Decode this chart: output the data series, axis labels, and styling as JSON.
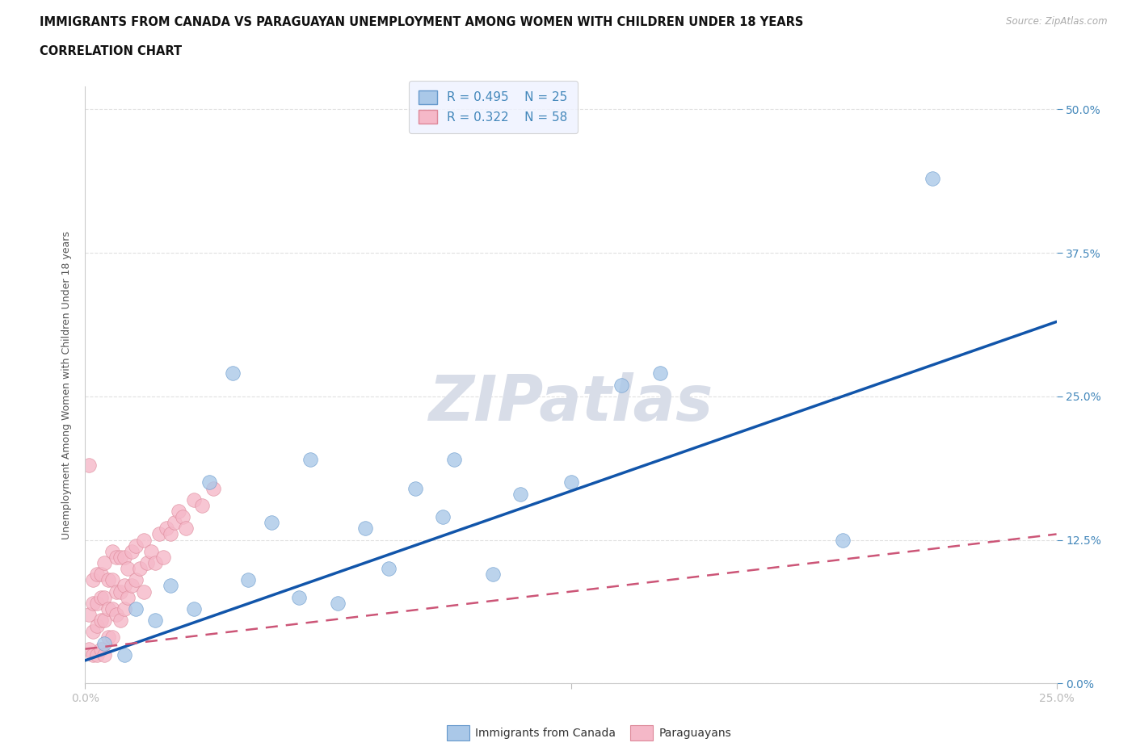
{
  "title_line1": "IMMIGRANTS FROM CANADA VS PARAGUAYAN UNEMPLOYMENT AMONG WOMEN WITH CHILDREN UNDER 18 YEARS",
  "title_line2": "CORRELATION CHART",
  "source_text": "Source: ZipAtlas.com",
  "ylabel": "Unemployment Among Women with Children Under 18 years",
  "xlim": [
    0.0,
    0.25
  ],
  "ylim": [
    0.0,
    0.52
  ],
  "ytick_positions": [
    0.0,
    0.125,
    0.25,
    0.375,
    0.5
  ],
  "ytick_labels": [
    "0.0%",
    "12.5%",
    "25.0%",
    "37.5%",
    "50.0%"
  ],
  "xtick_positions": [
    0.0,
    0.125,
    0.25
  ],
  "xtick_labels": [
    "0.0%",
    "",
    "25.0%"
  ],
  "canada_R": 0.495,
  "canada_N": 25,
  "paraguay_R": 0.322,
  "paraguay_N": 58,
  "canada_face_color": "#aac8e8",
  "canada_edge_color": "#6699cc",
  "canada_line_color": "#1155aa",
  "paraguay_face_color": "#f5b8c8",
  "paraguay_edge_color": "#dd8899",
  "paraguay_line_color": "#cc5577",
  "canada_scatter_x": [
    0.005,
    0.01,
    0.013,
    0.018,
    0.022,
    0.028,
    0.032,
    0.038,
    0.042,
    0.048,
    0.055,
    0.058,
    0.065,
    0.072,
    0.078,
    0.085,
    0.092,
    0.095,
    0.105,
    0.112,
    0.125,
    0.138,
    0.148,
    0.195,
    0.218
  ],
  "canada_scatter_y": [
    0.035,
    0.025,
    0.065,
    0.055,
    0.085,
    0.065,
    0.175,
    0.27,
    0.09,
    0.14,
    0.075,
    0.195,
    0.07,
    0.135,
    0.1,
    0.17,
    0.145,
    0.195,
    0.095,
    0.165,
    0.175,
    0.26,
    0.27,
    0.125,
    0.44
  ],
  "paraguay_scatter_x": [
    0.001,
    0.001,
    0.001,
    0.002,
    0.002,
    0.002,
    0.002,
    0.003,
    0.003,
    0.003,
    0.003,
    0.004,
    0.004,
    0.004,
    0.004,
    0.005,
    0.005,
    0.005,
    0.005,
    0.006,
    0.006,
    0.006,
    0.007,
    0.007,
    0.007,
    0.007,
    0.008,
    0.008,
    0.008,
    0.009,
    0.009,
    0.009,
    0.01,
    0.01,
    0.01,
    0.011,
    0.011,
    0.012,
    0.012,
    0.013,
    0.013,
    0.014,
    0.015,
    0.015,
    0.016,
    0.017,
    0.018,
    0.019,
    0.02,
    0.021,
    0.022,
    0.023,
    0.024,
    0.025,
    0.026,
    0.028,
    0.03,
    0.033
  ],
  "paraguay_scatter_y": [
    0.03,
    0.06,
    0.19,
    0.025,
    0.045,
    0.07,
    0.09,
    0.025,
    0.05,
    0.07,
    0.095,
    0.03,
    0.055,
    0.075,
    0.095,
    0.025,
    0.055,
    0.075,
    0.105,
    0.04,
    0.065,
    0.09,
    0.04,
    0.065,
    0.09,
    0.115,
    0.06,
    0.08,
    0.11,
    0.055,
    0.08,
    0.11,
    0.065,
    0.085,
    0.11,
    0.075,
    0.1,
    0.085,
    0.115,
    0.09,
    0.12,
    0.1,
    0.08,
    0.125,
    0.105,
    0.115,
    0.105,
    0.13,
    0.11,
    0.135,
    0.13,
    0.14,
    0.15,
    0.145,
    0.135,
    0.16,
    0.155,
    0.17
  ],
  "canada_trend_x0": 0.0,
  "canada_trend_x1": 0.25,
  "canada_trend_y0": 0.02,
  "canada_trend_y1": 0.315,
  "paraguay_trend_x0": 0.0,
  "paraguay_trend_x1": 0.25,
  "paraguay_trend_y0": 0.03,
  "paraguay_trend_y1": 0.13,
  "watermark": "ZIPatlas",
  "bg_color": "#ffffff",
  "grid_color": "#e0e0e0",
  "title_color": "#111111",
  "label_color": "#4488bb",
  "source_color": "#aaaaaa"
}
